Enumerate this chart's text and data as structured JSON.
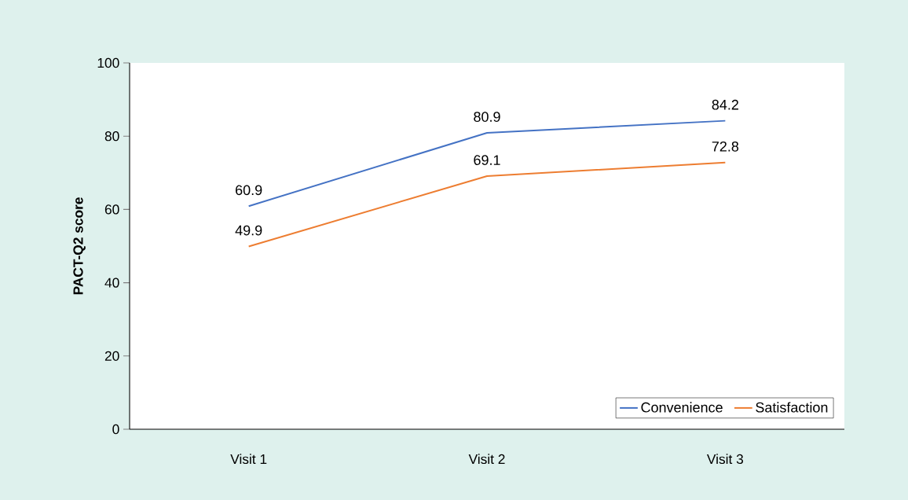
{
  "chart_data": {
    "type": "line",
    "ylabel": "PACT-Q2 score",
    "categories": [
      "Visit 1",
      "Visit 2",
      "Visit 3"
    ],
    "series": [
      {
        "name": "Convenience",
        "color": "#4472c4",
        "values": [
          60.9,
          80.9,
          84.2
        ]
      },
      {
        "name": "Satisfaction",
        "color": "#ed7d31",
        "values": [
          49.9,
          69.1,
          72.8
        ]
      }
    ],
    "ylim": [
      0,
      100
    ],
    "yticks": [
      0,
      20,
      40,
      60,
      80,
      100
    ],
    "data_labels": true,
    "legend": "bottom right",
    "marker": "none",
    "line_style": "solid"
  }
}
